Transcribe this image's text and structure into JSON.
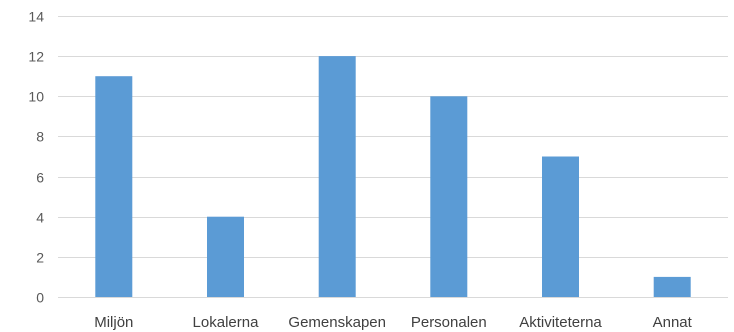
{
  "chart_data": {
    "type": "bar",
    "categories": [
      "Miljön",
      "Lokalerna",
      "Gemenskapen",
      "Personalen",
      "Aktiviteterna",
      "Annat"
    ],
    "values": [
      11,
      4,
      12,
      10,
      7,
      1
    ],
    "title": "",
    "xlabel": "",
    "ylabel": "",
    "ylim": [
      0,
      14
    ],
    "yticks": [
      0,
      2,
      4,
      6,
      8,
      10,
      12,
      14
    ],
    "grid": true,
    "legend": "none",
    "bar_color": "#5B9BD5",
    "grid_color": "#D9D9D9"
  }
}
